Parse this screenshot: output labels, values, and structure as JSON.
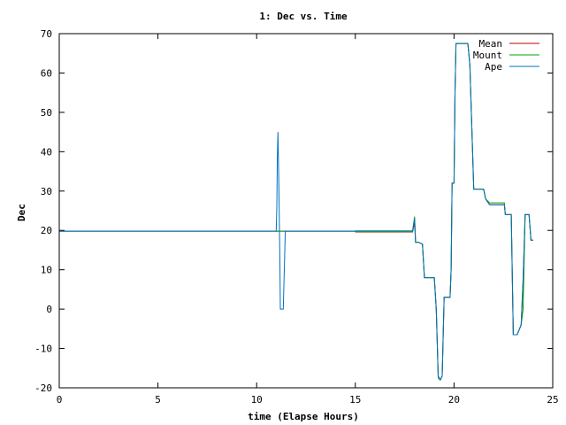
{
  "chart_data": {
    "type": "line",
    "title": "1: Dec vs. Time",
    "xlabel": "time (Elapse Hours)",
    "ylabel": "Dec",
    "xlim": [
      0,
      25
    ],
    "ylim": [
      -20,
      70
    ],
    "xticks": [
      0,
      5,
      10,
      15,
      20,
      25
    ],
    "yticks": [
      -20,
      -10,
      0,
      10,
      20,
      30,
      40,
      50,
      60,
      70
    ],
    "grid": false,
    "legend_position": "top-right",
    "series": [
      {
        "name": "Mean",
        "color": "#c00000",
        "x": [
          0,
          15.0,
          15.01,
          17.9,
          18.0,
          18.05,
          18.1,
          18.2,
          18.4,
          18.5,
          18.6,
          18.9,
          19.0,
          19.1,
          19.2,
          19.3,
          19.4,
          19.5,
          19.6,
          19.8,
          19.85,
          19.9,
          20.0,
          20.05,
          20.1,
          20.3,
          20.7,
          20.75,
          20.8,
          21.0,
          21.4,
          21.5,
          21.6,
          21.8,
          21.9,
          22.3,
          22.5,
          22.55,
          22.6,
          22.8,
          22.9,
          23.0,
          23.1,
          23.2,
          23.4,
          23.5,
          23.6,
          23.7,
          23.8,
          23.9,
          24.0
        ],
        "y": [
          19.8,
          19.8,
          19.6,
          19.6,
          22,
          17,
          17,
          17,
          16.5,
          8,
          8,
          8,
          8,
          0,
          -17,
          -18,
          -17,
          3,
          3,
          3,
          10,
          32,
          32,
          55,
          67.5,
          67.5,
          67.5,
          65,
          62,
          30.5,
          30.5,
          30.5,
          28,
          26.5,
          26.5,
          26.5,
          26.5,
          26.5,
          24,
          24,
          24,
          -6.5,
          -6.5,
          -6.5,
          -4,
          7.5,
          24,
          24,
          24,
          17.5,
          17.5
        ]
      },
      {
        "name": "Mount",
        "color": "#00a000",
        "x": [
          0,
          15.0,
          15.01,
          17.9,
          18.0,
          18.05,
          18.1,
          18.2,
          18.4,
          18.5,
          18.6,
          18.9,
          19.0,
          19.1,
          19.2,
          19.3,
          19.4,
          19.5,
          19.6,
          19.8,
          19.85,
          19.9,
          20.0,
          20.05,
          20.1,
          20.3,
          20.7,
          20.75,
          20.8,
          21.0,
          21.4,
          21.5,
          21.6,
          21.8,
          21.9,
          22.3,
          22.5,
          22.55,
          22.6,
          22.8,
          22.9,
          23.0,
          23.1,
          23.2,
          23.4,
          23.5,
          23.6,
          23.7,
          23.8,
          23.9,
          24.0
        ],
        "y": [
          19.8,
          19.8,
          19.7,
          19.7,
          23.5,
          17,
          17,
          17,
          16.5,
          8,
          8,
          8,
          8,
          0,
          -17.5,
          -18,
          -17,
          3,
          3,
          3,
          10,
          32,
          32,
          55,
          67.5,
          67.5,
          67.5,
          65,
          62,
          30.5,
          30.5,
          30.5,
          28,
          27,
          27,
          27,
          27,
          27,
          24,
          24,
          24,
          -6.5,
          -6.5,
          -6.5,
          -4,
          0,
          24,
          24,
          24,
          17.5,
          17.5
        ]
      },
      {
        "name": "Ape",
        "color": "#0070c0",
        "x": [
          0,
          10.99,
          11.02,
          11.05,
          11.08,
          11.12,
          11.18,
          11.2,
          11.25,
          11.35,
          11.45,
          11.5,
          15.0,
          15.01,
          17.9,
          18.0,
          18.05,
          18.1,
          18.2,
          18.4,
          18.5,
          18.6,
          18.9,
          19.0,
          19.1,
          19.2,
          19.3,
          19.4,
          19.5,
          19.6,
          19.8,
          19.85,
          19.9,
          20.0,
          20.05,
          20.1,
          20.3,
          20.7,
          20.75,
          20.8,
          21.0,
          21.4,
          21.5,
          21.6,
          21.8,
          21.9,
          22.3,
          22.5,
          22.55,
          22.6,
          22.8,
          22.9,
          23.0,
          23.1,
          23.2,
          23.4,
          23.5,
          23.6,
          23.7,
          23.8,
          23.9,
          24.0
        ],
        "y": [
          19.8,
          19.8,
          26,
          38.5,
          45,
          33,
          12,
          0,
          0,
          0,
          19.8,
          19.8,
          19.8,
          19.9,
          19.9,
          23,
          17,
          17,
          17,
          16.5,
          8,
          8,
          8,
          8,
          0,
          -17,
          -18,
          -17,
          3,
          3,
          3,
          10,
          32,
          32,
          55,
          67.5,
          67.5,
          67.5,
          65,
          62,
          30.5,
          30.5,
          30.5,
          28,
          26.5,
          26.5,
          26.5,
          26.5,
          26.5,
          24,
          24,
          24,
          -6.5,
          -6.5,
          -6.5,
          -4,
          7.5,
          24,
          24,
          24,
          17.5,
          17.5
        ]
      }
    ]
  }
}
